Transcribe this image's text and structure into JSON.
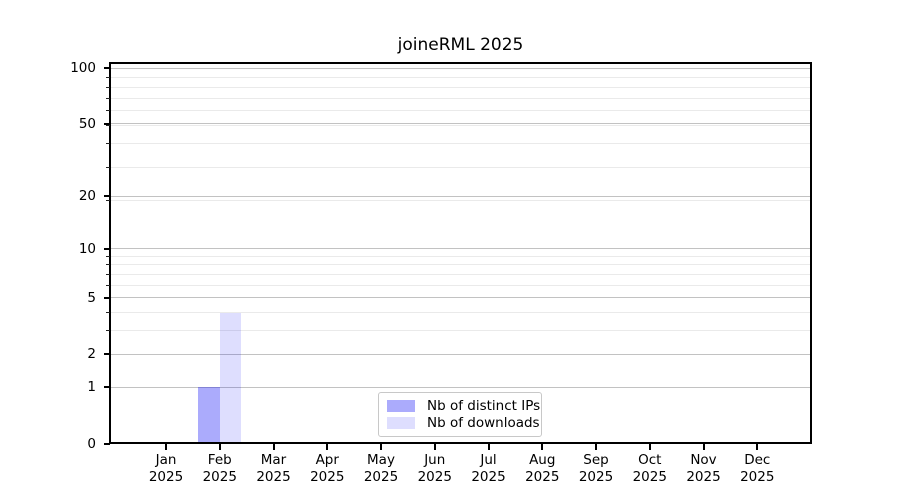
{
  "figure": {
    "title": "joineRML 2025"
  },
  "chart_data": {
    "type": "bar",
    "title": "joineRML 2025",
    "categories": [
      "Jan 2025",
      "Feb 2025",
      "Mar 2025",
      "Apr 2025",
      "May 2025",
      "Jun 2025",
      "Jul 2025",
      "Aug 2025",
      "Sep 2025",
      "Oct 2025",
      "Nov 2025",
      "Dec 2025"
    ],
    "series": [
      {
        "name": "Nb of distinct IPs",
        "color": "#ababfc",
        "fill": "rgba(0,0,245,0.33)",
        "values": [
          0,
          1,
          0,
          0,
          0,
          0,
          0,
          0,
          0,
          0,
          0,
          0
        ]
      },
      {
        "name": "Nb of downloads",
        "color": "#dedefe",
        "fill": "rgba(0,0,245,0.13)",
        "values": [
          0,
          4,
          0,
          0,
          0,
          0,
          0,
          0,
          0,
          0,
          0,
          0
        ]
      }
    ],
    "xlabel": "",
    "ylabel": "",
    "y_scale": "log1p (log10 of 1+y)",
    "y_ticks": [
      0,
      1,
      2,
      5,
      10,
      20,
      50,
      100
    ],
    "y_minor_ticks": [
      3,
      4,
      6,
      7,
      8,
      9,
      19,
      29,
      39,
      49,
      59,
      69,
      79,
      89
    ],
    "ylim": [
      0,
      106
    ],
    "grid": true,
    "legend_position": "lower center"
  }
}
